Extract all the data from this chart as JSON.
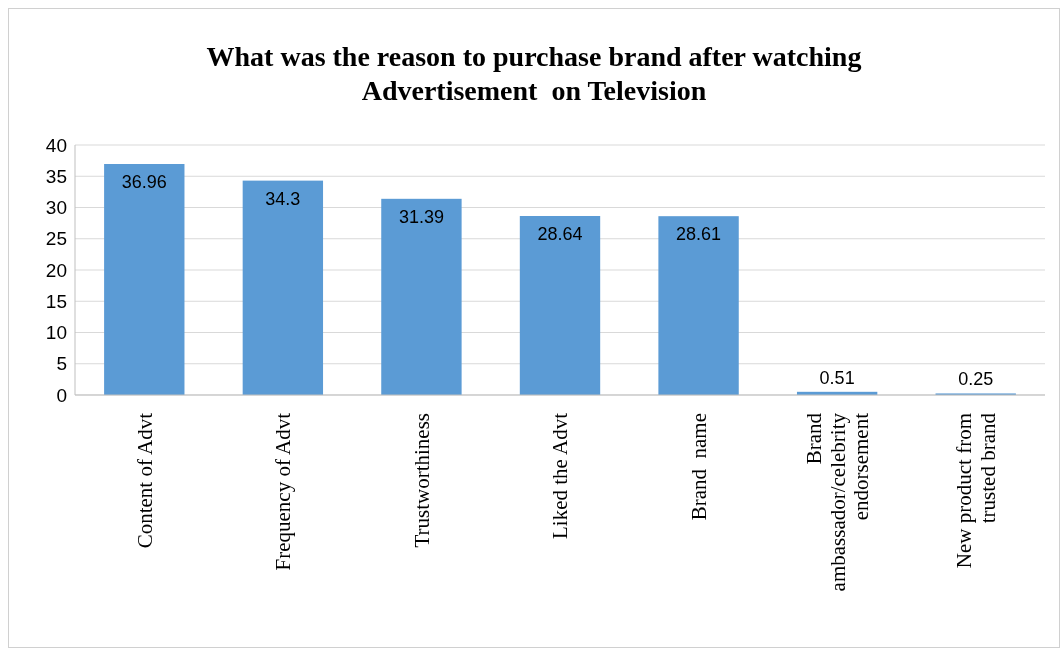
{
  "chart_data": {
    "type": "bar",
    "title": "What was the reason to purchase brand after watching Advertisement  on Television",
    "categories": [
      "Content of Advt",
      "Frequency of Advt",
      "Trustworthiness",
      "Liked the Advt",
      "Brand  name",
      "Brand ambassador/celebrity endorsement",
      "New product from trusted brand"
    ],
    "values": [
      36.96,
      34.3,
      31.39,
      28.64,
      28.61,
      0.51,
      0.25
    ],
    "color": "#5b9bd5",
    "ylim": [
      0,
      40
    ],
    "yticks": [
      0,
      5,
      10,
      15,
      20,
      25,
      30,
      35,
      40
    ],
    "grid": "y",
    "data_labels": true
  }
}
